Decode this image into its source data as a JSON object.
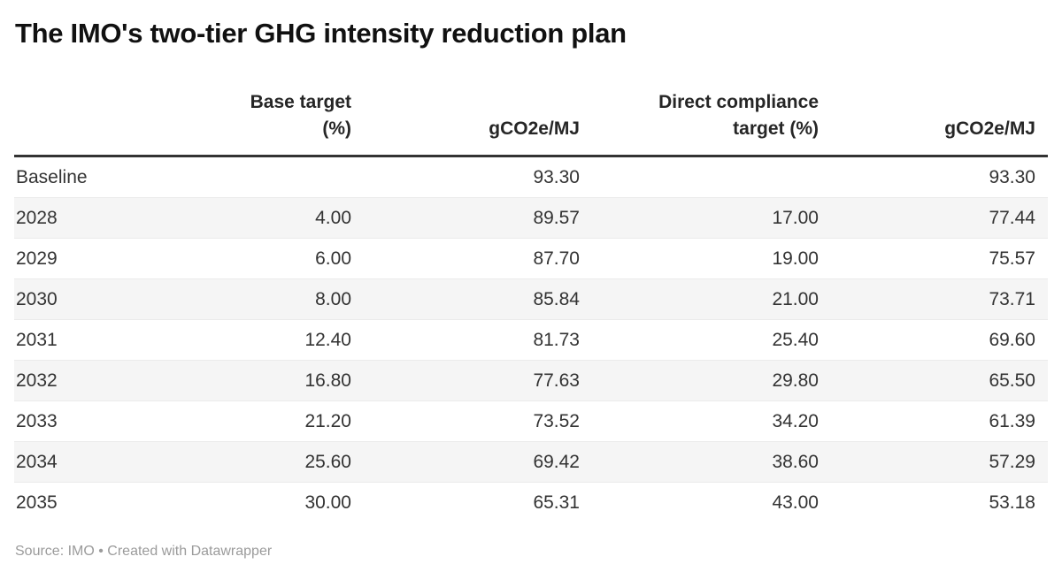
{
  "title": "The IMO's two-tier GHG intensity reduction plan",
  "header": {
    "cells": [
      {
        "line1": "",
        "line2": ""
      },
      {
        "line1": "Base target",
        "line2": "(%)"
      },
      {
        "line1": "",
        "line2": "gCO2e/MJ"
      },
      {
        "line1": "Direct compliance",
        "line2": "target (%)"
      },
      {
        "line1": "",
        "line2": "gCO2e/MJ"
      }
    ]
  },
  "footer": {
    "text": "Source: IMO • Created with Datawrapper"
  },
  "colors": {
    "title_text": "#111111",
    "body_text": "#333333",
    "header_rule": "#333333",
    "row_stripe": "#f5f5f5",
    "row_border": "#ebebeb",
    "footer_text": "#9b9b9b",
    "background": "#ffffff"
  },
  "chart_data": {
    "type": "table",
    "title": "The IMO's two-tier GHG intensity reduction plan",
    "columns": [
      "",
      "Base target (%)",
      "gCO2e/MJ",
      "Direct compliance target (%)",
      "gCO2e/MJ"
    ],
    "rows": [
      [
        "Baseline",
        "",
        "93.30",
        "",
        "93.30"
      ],
      [
        "2028",
        "4.00",
        "89.57",
        "17.00",
        "77.44"
      ],
      [
        "2029",
        "6.00",
        "87.70",
        "19.00",
        "75.57"
      ],
      [
        "2030",
        "8.00",
        "85.84",
        "21.00",
        "73.71"
      ],
      [
        "2031",
        "12.40",
        "81.73",
        "25.40",
        "69.60"
      ],
      [
        "2032",
        "16.80",
        "77.63",
        "29.80",
        "65.50"
      ],
      [
        "2033",
        "21.20",
        "73.52",
        "34.20",
        "61.39"
      ],
      [
        "2034",
        "25.60",
        "69.42",
        "38.60",
        "57.29"
      ],
      [
        "2035",
        "30.00",
        "65.31",
        "43.00",
        "53.18"
      ]
    ],
    "source": "IMO",
    "attribution": "Created with Datawrapper",
    "layout_hints": {
      "striped_rows": "even rows shaded",
      "header_alignment": "right",
      "value_alignment": "right",
      "label_column_alignment": "left"
    }
  }
}
